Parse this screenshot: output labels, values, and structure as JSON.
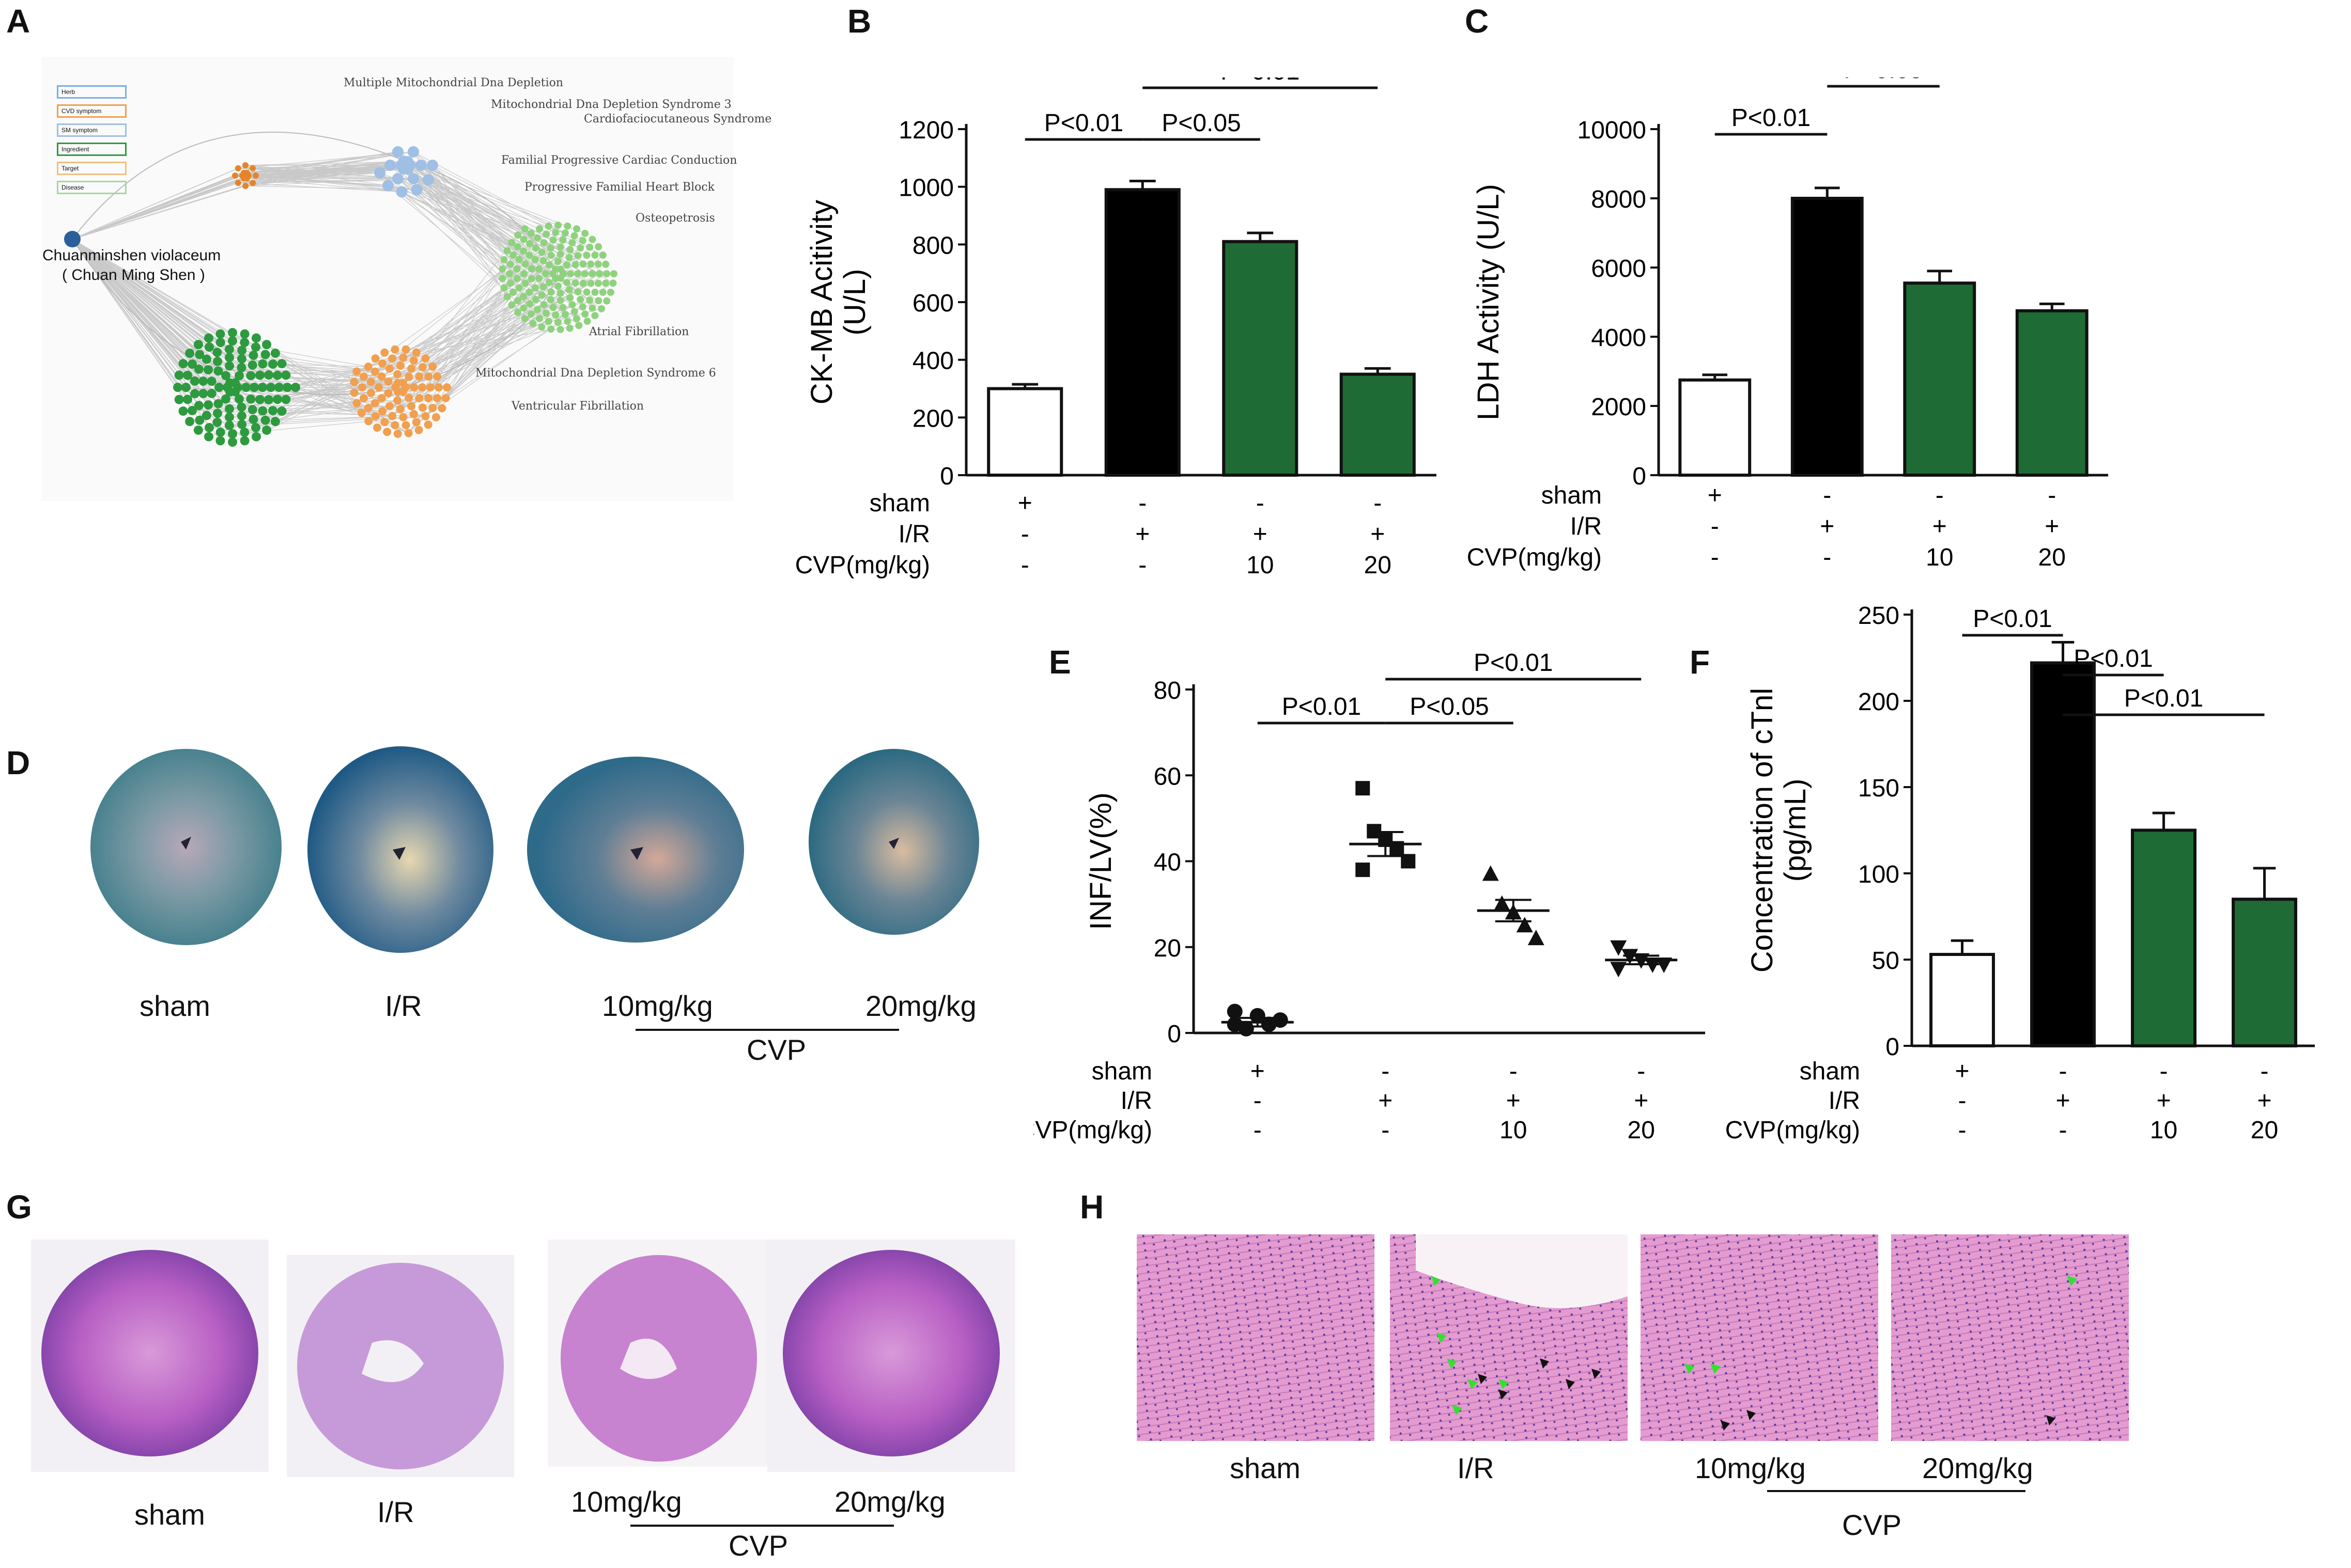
{
  "panels": {
    "A": "A",
    "B": "B",
    "C": "C",
    "D": "D",
    "E": "E",
    "F": "F",
    "G": "G",
    "H": "H"
  },
  "network": {
    "herb_label_1": "Chuanminshen violaceum",
    "herb_label_2": "( Chuan Ming Shen )",
    "legend": [
      "Herb",
      "CVD symptom",
      "SM symptom",
      "Ingredient",
      "Target",
      "Disease"
    ],
    "disease_labels": [
      "Multiple Mitochondrial Dna Depletion",
      "Mitochondrial Dna Depletion Syndrome 3",
      "Cardiofaciocutaneous Syndrome",
      "Familial Progressive Cardiac Conduction",
      "Progressive Familial Heart Block",
      "Osteopetrosis",
      "Atrial Fibrillation",
      "Mitochondrial Dna Depletion Syndrome 6",
      "Ventricular Fibrillation"
    ]
  },
  "colors": {
    "sham": "#ffffff",
    "ir": "#000000",
    "cvp": "#1e6b35",
    "green_node": "#2e9a3f",
    "light_green": "#8fd27e",
    "orange": "#f0a050",
    "blue": "#9fbfe5",
    "dark_orange": "#e6842a"
  },
  "chart_data": [
    {
      "id": "B",
      "type": "bar",
      "ylabel": "CK-MB Acitivity (U/L)",
      "ylim": [
        0,
        1200
      ],
      "yticks": [
        "0",
        "200",
        "400",
        "600",
        "800",
        "1000",
        "1200"
      ],
      "categories": [
        "sham",
        "I/R",
        "CVP 10",
        "CVP 20"
      ],
      "values": [
        300,
        990,
        810,
        350
      ],
      "errors": [
        15,
        30,
        30,
        20
      ],
      "sig": [
        {
          "from": 0,
          "to": 1,
          "label": "P<0.01",
          "level": 1
        },
        {
          "from": 1,
          "to": 2,
          "label": "P<0.05",
          "level": 1
        },
        {
          "from": 1,
          "to": 3,
          "label": "P<0.01",
          "level": 2
        }
      ],
      "rows": [
        {
          "name": "sham",
          "vals": [
            "+",
            "-",
            "-",
            "-"
          ]
        },
        {
          "name": "I/R",
          "vals": [
            "-",
            "+",
            "+",
            "+"
          ]
        },
        {
          "name": "CVP(mg/kg)",
          "vals": [
            "-",
            "-",
            "10",
            "20"
          ]
        }
      ]
    },
    {
      "id": "C",
      "type": "bar",
      "ylabel": "LDH Activity (U/L)",
      "ylim": [
        0,
        10000
      ],
      "yticks": [
        "0",
        "2000",
        "4000",
        "6000",
        "8000",
        "10000"
      ],
      "categories": [
        "sham",
        "I/R",
        "CVP 10",
        "CVP 20"
      ],
      "values": [
        2750,
        8000,
        5550,
        4750
      ],
      "errors": [
        150,
        300,
        350,
        200
      ],
      "sig": [
        {
          "from": 0,
          "to": 1,
          "label": "P<0.01",
          "level": 1
        },
        {
          "from": 1,
          "to": 2,
          "label": "P<0.05",
          "level": 2
        },
        {
          "from": 1,
          "to": 3,
          "label": "P<0.01",
          "level": 3
        }
      ],
      "rows": [
        {
          "name": "sham",
          "vals": [
            "+",
            "-",
            "-",
            "-"
          ]
        },
        {
          "name": "I/R",
          "vals": [
            "-",
            "+",
            "+",
            "+"
          ]
        },
        {
          "name": "CVP(mg/kg)",
          "vals": [
            "-",
            "-",
            "10",
            "20"
          ]
        }
      ]
    },
    {
      "id": "E",
      "type": "scatter",
      "ylabel": "INF/LV(%)",
      "ylim": [
        0,
        80
      ],
      "yticks": [
        "0",
        "20",
        "40",
        "60",
        "80"
      ],
      "categories": [
        "sham",
        "I/R",
        "CVP 10",
        "CVP 20"
      ],
      "points": [
        [
          2,
          1,
          4,
          2,
          3,
          5,
          1
        ],
        [
          57,
          47,
          45,
          43,
          40,
          38
        ],
        [
          37,
          30,
          28,
          25,
          22
        ],
        [
          20,
          18,
          17,
          16,
          16,
          15
        ]
      ],
      "means": [
        2.5,
        44,
        28.5,
        17
      ],
      "sems": [
        1,
        2.8,
        2.5,
        1
      ],
      "sig": [
        {
          "from": 0,
          "to": 1,
          "label": "P<0.01",
          "level": 1
        },
        {
          "from": 1,
          "to": 2,
          "label": "P<0.05",
          "level": 1
        },
        {
          "from": 1,
          "to": 3,
          "label": "P<0.01",
          "level": 2
        }
      ],
      "rows": [
        {
          "name": "sham",
          "vals": [
            "+",
            "-",
            "-",
            "-"
          ]
        },
        {
          "name": "I/R",
          "vals": [
            "-",
            "+",
            "+",
            "+"
          ]
        },
        {
          "name": "CVP(mg/kg)",
          "vals": [
            "-",
            "-",
            "10",
            "20"
          ]
        }
      ]
    },
    {
      "id": "F",
      "type": "bar",
      "ylabel": "Concentration of cTnl (pg/mL)",
      "ylim": [
        0,
        250
      ],
      "yticks": [
        "0",
        "50",
        "100",
        "150",
        "200",
        "250"
      ],
      "categories": [
        "sham",
        "I/R",
        "CVP 10",
        "CVP 20"
      ],
      "values": [
        53,
        222,
        125,
        85
      ],
      "errors": [
        8,
        12,
        10,
        18
      ],
      "sig": [
        {
          "from": 0,
          "to": 1,
          "label": "P<0.01",
          "level": 1
        },
        {
          "from": 1,
          "to": 2,
          "label": "P<0.01",
          "level": 2
        },
        {
          "from": 1,
          "to": 3,
          "label": "P<0.01",
          "level": 3
        }
      ],
      "rows": [
        {
          "name": "sham",
          "vals": [
            "+",
            "-",
            "-",
            "-"
          ]
        },
        {
          "name": "I/R",
          "vals": [
            "-",
            "+",
            "+",
            "+"
          ]
        },
        {
          "name": "CVP(mg/kg)",
          "vals": [
            "-",
            "-",
            "10",
            "20"
          ]
        }
      ]
    }
  ],
  "panelD": {
    "labels": [
      "sham",
      "I/R",
      "10mg/kg",
      "20mg/kg"
    ],
    "group": "CVP"
  },
  "panelG": {
    "labels": [
      "sham",
      "I/R",
      "10mg/kg",
      "20mg/kg"
    ],
    "group": "CVP"
  },
  "panelH": {
    "labels": [
      "sham",
      "I/R",
      "10mg/kg",
      "20mg/kg"
    ],
    "group": "CVP"
  }
}
